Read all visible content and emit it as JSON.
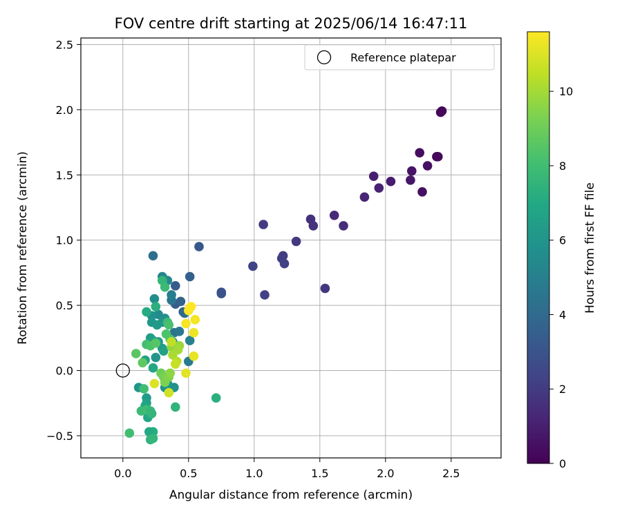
{
  "chart_data": {
    "type": "scatter",
    "title": "FOV centre drift starting at 2025/06/14 16:47:11",
    "xlabel": "Angular distance from reference (arcmin)",
    "ylabel": "Rotation from reference (arcmin)",
    "xlim": [
      -0.32,
      2.88
    ],
    "ylim": [
      -0.67,
      2.55
    ],
    "xticks": [
      0.0,
      0.5,
      1.0,
      1.5,
      2.0,
      2.5
    ],
    "xtick_labels": [
      "0.0",
      "0.5",
      "1.0",
      "1.5",
      "2.0",
      "2.5"
    ],
    "yticks": [
      -0.5,
      0.0,
      0.5,
      1.0,
      1.5,
      2.0,
      2.5
    ],
    "ytick_labels": [
      "−0.5",
      "0.0",
      "0.5",
      "1.0",
      "1.5",
      "2.0",
      "2.5"
    ],
    "grid": true,
    "legend": {
      "location": "upper right",
      "entries": [
        "Reference platepar"
      ]
    },
    "reference_point": [
      0.0,
      0.0
    ],
    "colorbar": {
      "label": "Hours from first FF file",
      "range": [
        0,
        11.6
      ],
      "ticks": [
        0,
        2,
        4,
        6,
        8,
        10
      ],
      "tick_labels": [
        "0",
        "2",
        "4",
        "6",
        "8",
        "10"
      ],
      "colormap": "viridis"
    },
    "points": [
      [
        2.42,
        1.98,
        0.1
      ],
      [
        2.43,
        1.99,
        0.15
      ],
      [
        2.39,
        1.64,
        0.2
      ],
      [
        2.4,
        1.64,
        0.25
      ],
      [
        2.26,
        1.67,
        0.4
      ],
      [
        2.32,
        1.57,
        0.5
      ],
      [
        2.2,
        1.53,
        0.6
      ],
      [
        2.19,
        1.46,
        0.7
      ],
      [
        2.28,
        1.37,
        0.5
      ],
      [
        2.04,
        1.45,
        0.9
      ],
      [
        1.91,
        1.49,
        1.0
      ],
      [
        1.95,
        1.4,
        1.1
      ],
      [
        1.84,
        1.33,
        1.2
      ],
      [
        1.61,
        1.19,
        1.4
      ],
      [
        1.68,
        1.11,
        1.5
      ],
      [
        1.43,
        1.16,
        1.6
      ],
      [
        1.45,
        1.11,
        1.7
      ],
      [
        1.54,
        0.63,
        1.8
      ],
      [
        1.32,
        0.99,
        1.9
      ],
      [
        1.22,
        0.88,
        2.0
      ],
      [
        1.21,
        0.86,
        2.1
      ],
      [
        1.23,
        0.82,
        2.2
      ],
      [
        1.07,
        1.12,
        2.0
      ],
      [
        1.08,
        0.58,
        2.2
      ],
      [
        0.99,
        0.8,
        2.3
      ],
      [
        0.75,
        0.6,
        2.8
      ],
      [
        0.75,
        0.59,
        2.9
      ],
      [
        0.58,
        0.95,
        3.2
      ],
      [
        0.51,
        0.72,
        3.5
      ],
      [
        0.4,
        0.65,
        3.3
      ],
      [
        0.4,
        0.51,
        3.4
      ],
      [
        0.44,
        0.53,
        3.6
      ],
      [
        0.46,
        0.45,
        3.8
      ],
      [
        0.47,
        0.44,
        4.0
      ],
      [
        0.23,
        0.88,
        4.2
      ],
      [
        0.37,
        0.54,
        4.5
      ],
      [
        0.39,
        0.29,
        4.4
      ],
      [
        0.43,
        0.3,
        4.6
      ],
      [
        0.5,
        0.07,
        4.8
      ],
      [
        0.51,
        0.23,
        5.0
      ],
      [
        0.3,
        0.72,
        5.2
      ],
      [
        0.34,
        0.69,
        5.3
      ],
      [
        0.37,
        0.58,
        4.9
      ],
      [
        0.24,
        0.55,
        5.6
      ],
      [
        0.27,
        0.43,
        5.5
      ],
      [
        0.22,
        0.42,
        5.8
      ],
      [
        0.32,
        0.4,
        5.7
      ],
      [
        0.3,
        0.37,
        6.0
      ],
      [
        0.22,
        0.37,
        6.1
      ],
      [
        0.26,
        0.35,
        6.2
      ],
      [
        0.38,
        0.22,
        5.9
      ],
      [
        0.27,
        0.22,
        6.3
      ],
      [
        0.21,
        0.25,
        6.4
      ],
      [
        0.23,
        0.23,
        6.5
      ],
      [
        0.3,
        0.17,
        6.2
      ],
      [
        0.31,
        0.15,
        6.6
      ],
      [
        0.25,
        0.1,
        6.0
      ],
      [
        0.17,
        0.08,
        6.7
      ],
      [
        0.23,
        0.02,
        6.9
      ],
      [
        0.32,
        -0.13,
        5.9
      ],
      [
        0.34,
        -0.1,
        6.1
      ],
      [
        0.39,
        -0.13,
        5.8
      ],
      [
        0.12,
        -0.13,
        6.0
      ],
      [
        0.18,
        -0.21,
        6.3
      ],
      [
        0.18,
        -0.25,
        6.5
      ],
      [
        0.17,
        -0.27,
        6.8
      ],
      [
        0.19,
        -0.36,
        6.9
      ],
      [
        0.2,
        -0.33,
        7.0
      ],
      [
        0.23,
        -0.47,
        7.2
      ],
      [
        0.2,
        -0.47,
        7.0
      ],
      [
        0.21,
        -0.53,
        7.5
      ],
      [
        0.23,
        -0.52,
        7.6
      ],
      [
        0.14,
        -0.31,
        7.8
      ],
      [
        0.18,
        -0.3,
        7.9
      ],
      [
        0.21,
        -0.31,
        7.7
      ],
      [
        0.22,
        -0.33,
        7.6
      ],
      [
        0.16,
        -0.14,
        8.0
      ],
      [
        0.05,
        -0.48,
        8.0
      ],
      [
        0.4,
        -0.28,
        7.5
      ],
      [
        0.71,
        -0.21,
        7.3
      ],
      [
        0.18,
        0.45,
        7.1
      ],
      [
        0.25,
        0.49,
        7.3
      ],
      [
        0.3,
        0.69,
        7.6
      ],
      [
        0.32,
        0.64,
        7.8
      ],
      [
        0.34,
        0.37,
        7.9
      ],
      [
        0.35,
        0.35,
        8.2
      ],
      [
        0.33,
        0.28,
        8.3
      ],
      [
        0.36,
        0.24,
        8.4
      ],
      [
        0.18,
        0.2,
        8.1
      ],
      [
        0.21,
        0.19,
        8.3
      ],
      [
        0.25,
        0.21,
        8.5
      ],
      [
        0.1,
        0.13,
        8.6
      ],
      [
        0.15,
        0.06,
        8.7
      ],
      [
        0.29,
        -0.02,
        9.0
      ],
      [
        0.31,
        -0.05,
        9.2
      ],
      [
        0.32,
        -0.09,
        9.3
      ],
      [
        0.35,
        -0.05,
        9.4
      ],
      [
        0.36,
        -0.02,
        9.6
      ],
      [
        0.37,
        0.18,
        9.7
      ],
      [
        0.43,
        0.19,
        9.8
      ],
      [
        0.42,
        0.16,
        10.0
      ],
      [
        0.38,
        0.12,
        10.1
      ],
      [
        0.41,
        0.07,
        10.3
      ],
      [
        0.4,
        0.05,
        10.6
      ],
      [
        0.35,
        -0.17,
        10.8
      ],
      [
        0.24,
        -0.1,
        11.0
      ],
      [
        0.48,
        -0.02,
        11.1
      ],
      [
        0.54,
        0.11,
        11.2
      ],
      [
        0.54,
        0.29,
        11.3
      ],
      [
        0.55,
        0.39,
        11.4
      ],
      [
        0.48,
        0.36,
        11.5
      ],
      [
        0.5,
        0.46,
        11.5
      ],
      [
        0.52,
        0.49,
        11.6
      ],
      [
        0.51,
        0.48,
        11.6
      ],
      [
        0.37,
        0.22,
        10.5
      ]
    ]
  }
}
